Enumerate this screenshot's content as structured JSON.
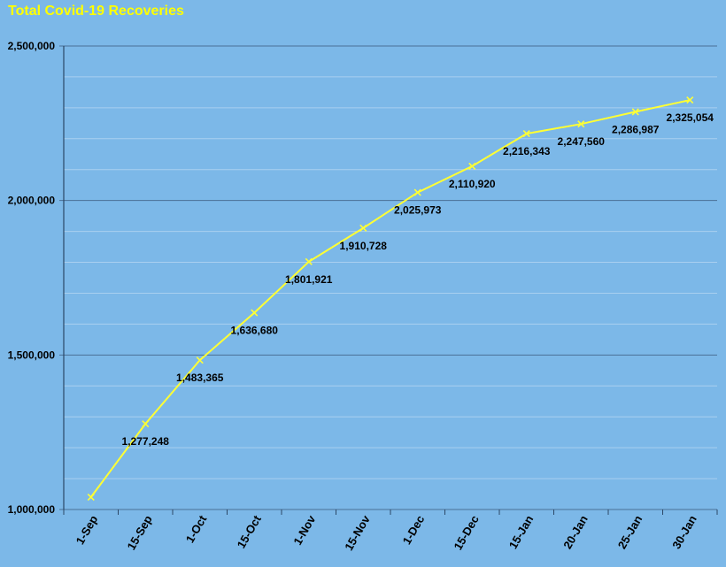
{
  "colors": {
    "background": "#7cb8e8",
    "title": "#ffff00",
    "line": "#ffff33",
    "major_grid": "#4a6f96",
    "minor_grid": "#a9cff0",
    "axis": "#2b4766"
  },
  "chart_data": {
    "type": "line",
    "title": "Total Covid-19 Recoveries",
    "xlabel": "",
    "ylabel": "",
    "categories": [
      "1-Sep",
      "15-Sep",
      "1-Oct",
      "15-Oct",
      "1-Nov",
      "15-Nov",
      "1-Dec",
      "15-Dec",
      "15-Jan",
      "20-Jan",
      "25-Jan",
      "30-Jan"
    ],
    "series": [
      {
        "values": [
          1040000,
          1277248,
          1483365,
          1636680,
          1801921,
          1910728,
          2025973,
          2110920,
          2216343,
          2247560,
          2286987,
          2325054
        ],
        "labels": [
          "",
          "1,277,248",
          "1,483,365",
          "1,636,680",
          "1,801,921",
          "1,910,728",
          "2,025,973",
          "2,110,920",
          "2,216,343",
          "2,247,560",
          "2,286,987",
          "2,325,054"
        ]
      }
    ],
    "ylim": [
      1000000,
      2500000
    ],
    "yticks": [
      1000000,
      1500000,
      2000000,
      2500000
    ],
    "ytick_labels": [
      "1,000,000",
      "1,500,000",
      "2,000,000",
      "2,500,000"
    ],
    "minor_grid_step": 100000,
    "grid": true,
    "legend": "none",
    "marker": "x"
  }
}
